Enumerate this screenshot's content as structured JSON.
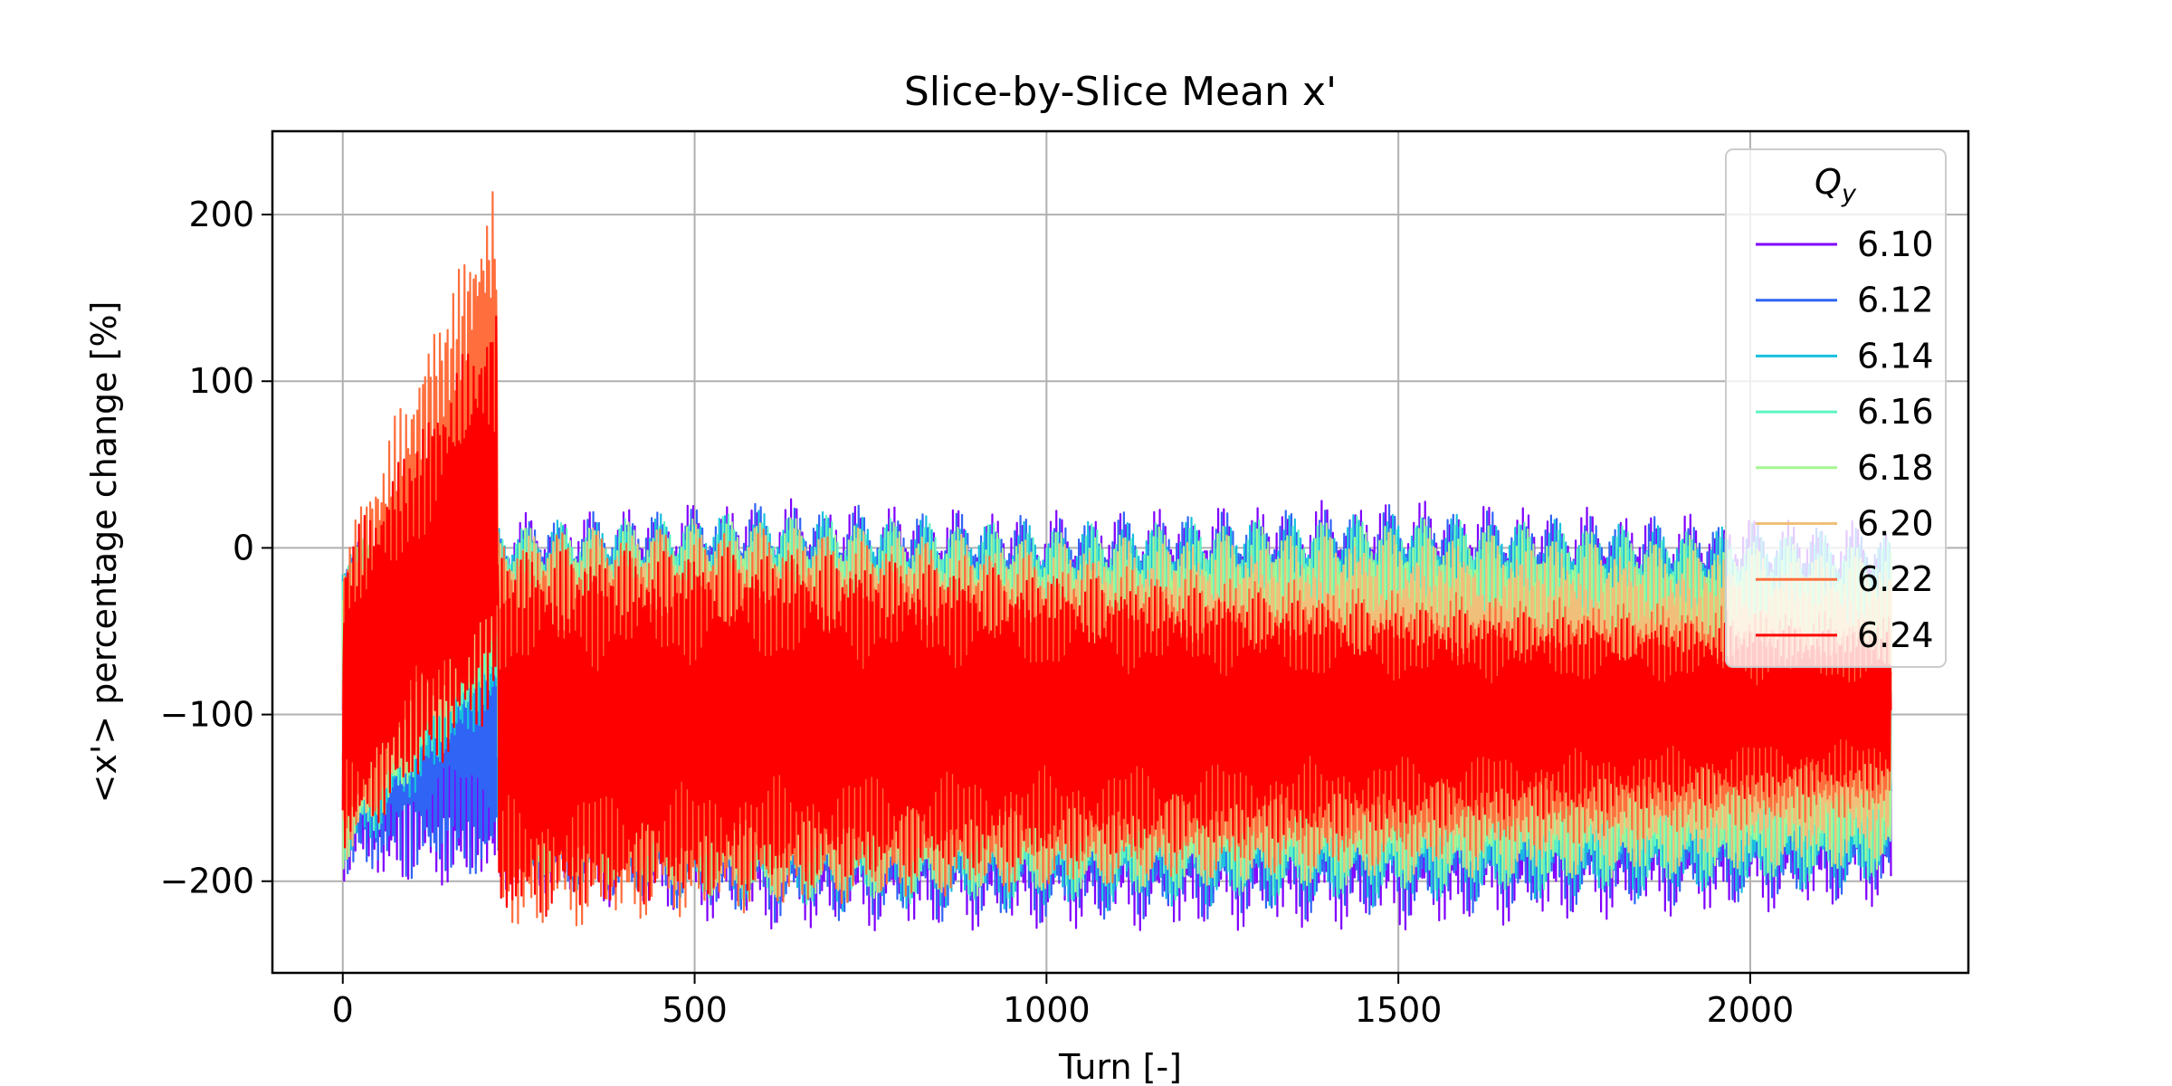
{
  "chart_data": {
    "type": "line",
    "title": "Slice-by-Slice Mean x'",
    "xlabel": "Turn [-]",
    "ylabel": "<x'> percentage change [%]",
    "xlim": [
      -100,
      2310
    ],
    "ylim": [
      -255,
      250
    ],
    "xticks": [
      0,
      500,
      1000,
      1500,
      2000
    ],
    "yticks": [
      -200,
      -100,
      0,
      100,
      200
    ],
    "xtick_labels": [
      "0",
      "500",
      "1000",
      "1500",
      "2000"
    ],
    "ytick_labels": [
      "−200",
      "−100",
      "0",
      "100",
      "200"
    ],
    "grid": true,
    "legend": {
      "title": "Q_y",
      "title_base": "Q",
      "title_sub": "y",
      "placement": "top-right"
    },
    "series": [
      {
        "name": "6.10",
        "color": "#8000ff",
        "envelope": [
          [
            0,
            5,
            -200
          ],
          [
            220,
            20,
            -205
          ],
          [
            600,
            30,
            -230
          ],
          [
            1000,
            22,
            -230
          ],
          [
            1500,
            30,
            -230
          ],
          [
            2200,
            15,
            -215
          ]
        ]
      },
      {
        "name": "6.12",
        "color": "#2f64f5",
        "envelope": [
          [
            0,
            5,
            -198
          ],
          [
            220,
            18,
            -200
          ],
          [
            600,
            28,
            -225
          ],
          [
            1000,
            20,
            -225
          ],
          [
            1500,
            26,
            -222
          ],
          [
            2200,
            12,
            -210
          ]
        ]
      },
      {
        "name": "6.14",
        "color": "#17c0df",
        "envelope": [
          [
            0,
            5,
            -196
          ],
          [
            220,
            12,
            -95
          ],
          [
            221,
            15,
            -200
          ],
          [
            600,
            24,
            -218
          ],
          [
            1000,
            16,
            -218
          ],
          [
            1500,
            22,
            -215
          ],
          [
            2200,
            8,
            -205
          ]
        ]
      },
      {
        "name": "6.16",
        "color": "#5ef4c4",
        "envelope": [
          [
            0,
            5,
            -195
          ],
          [
            220,
            12,
            -85
          ],
          [
            221,
            14,
            -198
          ],
          [
            600,
            22,
            -215
          ],
          [
            1000,
            14,
            -212
          ],
          [
            1500,
            20,
            -210
          ],
          [
            2200,
            5,
            -200
          ]
        ]
      },
      {
        "name": "6.18",
        "color": "#a4f793",
        "envelope": [
          [
            0,
            5,
            -193
          ],
          [
            220,
            12,
            -75
          ],
          [
            221,
            12,
            -195
          ],
          [
            600,
            20,
            -212
          ],
          [
            1000,
            10,
            -208
          ],
          [
            1500,
            18,
            -205
          ],
          [
            2200,
            0,
            -195
          ]
        ]
      },
      {
        "name": "6.20",
        "color": "#f0c07a",
        "envelope": [
          [
            0,
            5,
            -192
          ],
          [
            220,
            12,
            -60
          ],
          [
            221,
            10,
            -195
          ],
          [
            600,
            16,
            -210
          ],
          [
            1000,
            5,
            -205
          ],
          [
            1500,
            10,
            -200
          ],
          [
            2200,
            -5,
            -190
          ]
        ]
      },
      {
        "name": "6.22",
        "color": "#ff6e3c",
        "envelope": [
          [
            0,
            5,
            -190
          ],
          [
            220,
            225,
            -45
          ],
          [
            221,
            10,
            -232
          ],
          [
            600,
            12,
            -218
          ],
          [
            1000,
            -5,
            -205
          ],
          [
            1500,
            -25,
            -190
          ],
          [
            2200,
            -40,
            -160
          ]
        ]
      },
      {
        "name": "6.24",
        "color": "#ff0000",
        "envelope": [
          [
            0,
            0,
            -185
          ],
          [
            220,
            150,
            -100
          ],
          [
            221,
            0,
            -225
          ],
          [
            600,
            0,
            -205
          ],
          [
            1000,
            -15,
            -190
          ],
          [
            1500,
            -35,
            -170
          ],
          [
            2200,
            -50,
            -145
          ]
        ]
      }
    ]
  }
}
